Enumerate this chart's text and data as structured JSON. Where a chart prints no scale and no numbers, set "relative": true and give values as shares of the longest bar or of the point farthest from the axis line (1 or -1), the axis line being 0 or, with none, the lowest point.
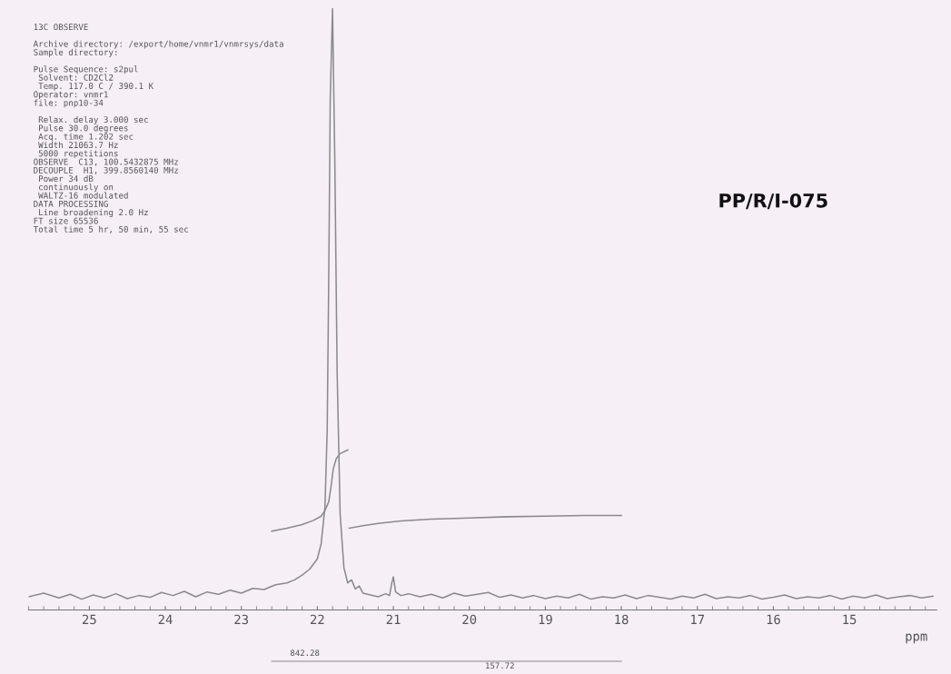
{
  "chart_data": {
    "type": "line",
    "relative": true,
    "xlabel": "ppm",
    "xlim": [
      25.8,
      13.85
    ],
    "xticks": [
      25,
      24,
      23,
      22,
      21,
      20,
      19,
      18,
      17,
      16,
      15
    ],
    "grid": false,
    "marker": "none",
    "line_style": "solid",
    "series": [
      {
        "color": "#8a8a8a",
        "x": [
          25.8,
          25.6,
          25.4,
          25.25,
          25.1,
          24.95,
          24.8,
          24.65,
          24.5,
          24.35,
          24.2,
          24.05,
          23.9,
          23.75,
          23.6,
          23.45,
          23.3,
          23.15,
          23.0,
          22.85,
          22.7,
          22.55,
          22.4,
          22.3,
          22.2,
          22.1,
          22.0,
          21.95,
          21.9,
          21.87,
          21.85,
          21.83,
          21.8,
          21.77,
          21.74,
          21.7,
          21.65,
          21.6,
          21.55,
          21.5,
          21.45,
          21.4,
          21.3,
          21.2,
          21.1,
          21.05,
          21.02,
          21.0,
          20.97,
          20.9,
          20.8,
          20.65,
          20.5,
          20.35,
          20.2,
          20.05,
          19.9,
          19.75,
          19.6,
          19.45,
          19.3,
          19.15,
          19.0,
          18.85,
          18.7,
          18.55,
          18.4,
          18.25,
          18.1,
          17.95,
          17.8,
          17.65,
          17.5,
          17.35,
          17.2,
          17.05,
          16.9,
          16.75,
          16.6,
          16.45,
          16.3,
          16.15,
          16.0,
          15.85,
          15.7,
          15.55,
          15.4,
          15.25,
          15.1,
          14.95,
          14.8,
          14.65,
          14.5,
          14.35,
          14.2,
          14.05,
          13.9
        ],
        "values": [
          0.022,
          0.028,
          0.02,
          0.026,
          0.018,
          0.025,
          0.02,
          0.027,
          0.019,
          0.024,
          0.021,
          0.029,
          0.024,
          0.031,
          0.022,
          0.03,
          0.026,
          0.033,
          0.028,
          0.036,
          0.034,
          0.042,
          0.045,
          0.05,
          0.058,
          0.068,
          0.085,
          0.11,
          0.17,
          0.3,
          0.55,
          0.85,
          1.0,
          0.75,
          0.4,
          0.16,
          0.07,
          0.045,
          0.05,
          0.035,
          0.04,
          0.028,
          0.025,
          0.022,
          0.027,
          0.024,
          0.045,
          0.055,
          0.03,
          0.024,
          0.027,
          0.022,
          0.026,
          0.02,
          0.028,
          0.023,
          0.026,
          0.029,
          0.021,
          0.025,
          0.02,
          0.024,
          0.019,
          0.023,
          0.02,
          0.026,
          0.018,
          0.022,
          0.02,
          0.025,
          0.019,
          0.024,
          0.021,
          0.018,
          0.023,
          0.02,
          0.026,
          0.019,
          0.022,
          0.02,
          0.024,
          0.018,
          0.021,
          0.025,
          0.019,
          0.022,
          0.02,
          0.024,
          0.018,
          0.023,
          0.02,
          0.025,
          0.019,
          0.022,
          0.024,
          0.02,
          0.023
        ]
      },
      {
        "color": "#8a8a8a",
        "x": [
          22.6,
          22.4,
          22.2,
          22.05,
          21.95,
          21.9,
          21.85,
          21.82,
          21.79,
          21.75,
          21.7,
          21.6
        ],
        "values": [
          0.131,
          0.136,
          0.142,
          0.149,
          0.156,
          0.165,
          0.18,
          0.205,
          0.235,
          0.252,
          0.26,
          0.266
        ]
      },
      {
        "color": "#8a8a8a",
        "x": [
          21.58,
          21.4,
          21.2,
          20.9,
          20.5,
          20.0,
          19.5,
          19.0,
          18.5,
          18.0
        ],
        "values": [
          0.136,
          0.14,
          0.144,
          0.148,
          0.151,
          0.153,
          0.155,
          0.156,
          0.157,
          0.157
        ]
      }
    ],
    "annotations": [
      "13C OBSERVE\n\nArchive directory: /export/home/vnmr1/vnmrsys/data\nSample directory:\n\nPulse Sequence: s2pul\n Solvent: CD2Cl2\n Temp. 117.0 C / 390.1 K\nOperator: vnmr1\nfile: pnp10-34\n\n Relax. delay 3.000 sec\n Pulse 30.0 degrees\n Acq. time 1.202 sec\n Width 21063.7 Hz\n 5000 repetitions\nOBSERVE  C13, 100.5432875 MHz\nDECOUPLE  H1, 399.8560140 MHz\n Power 34 dB\n continuously on\n WALTZ-16 modulated\nDATA PROCESSING\n Line broadening 2.0 Hz\nFT size 65536\nTotal time 5 hr, 50 min, 55 sec",
      "PP/R/I-075",
      "842.28",
      "157.72"
    ]
  }
}
